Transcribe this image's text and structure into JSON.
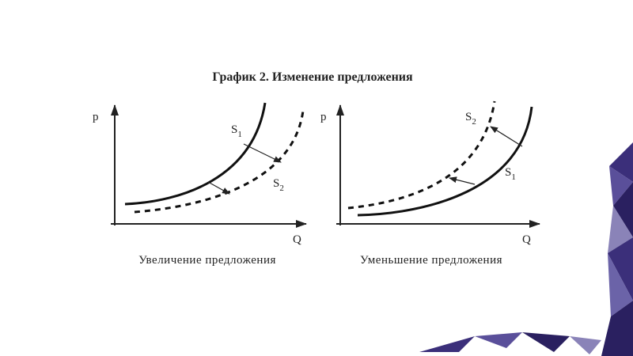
{
  "title": "График 2. Изменение предложения",
  "panels": [
    {
      "y_axis": "p",
      "x_axis": "Q",
      "caption": "Увеличение предложения",
      "curves": [
        {
          "name": "S",
          "subscript": "1"
        },
        {
          "name": "S",
          "subscript": "2"
        }
      ]
    },
    {
      "y_axis": "p",
      "x_axis": "Q",
      "caption": "Уменьшение предложения",
      "curves": [
        {
          "name": "S",
          "subscript": "2"
        },
        {
          "name": "S",
          "subscript": "1"
        }
      ]
    }
  ]
}
